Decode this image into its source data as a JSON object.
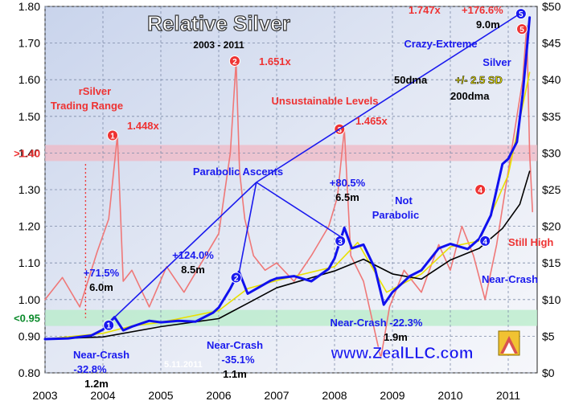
{
  "chart_data": {
    "type": "line",
    "title": "Relative Silver",
    "subtitle": "2003 - 2011",
    "x_ticks": [
      "2003",
      "2004",
      "2005",
      "2006",
      "2007",
      "2008",
      "2009",
      "2010",
      "2011"
    ],
    "y_left": {
      "ticks": [
        "0.80",
        "0.90",
        "1.00",
        "1.10",
        "1.20",
        "1.30",
        "1.40",
        "1.50",
        "1.60",
        "1.70",
        "1.80"
      ],
      "ylim": [
        0.8,
        1.8
      ]
    },
    "y_right": {
      "ticks": [
        "$0",
        "$5",
        "$10",
        "$15",
        "$20",
        "$25",
        "$30",
        "$35",
        "$40",
        "$45",
        "$50"
      ],
      "ylim": [
        0,
        50
      ]
    },
    "bands": [
      {
        "label": ">1.40",
        "y": 1.4,
        "color": "#f0b8c4"
      },
      {
        "label": "<0.95",
        "y": 0.95,
        "color": "#b7ecc8"
      }
    ],
    "series": [
      {
        "name": "Silver",
        "axis": "right",
        "color": "#1010ee",
        "x": [
          2003.0,
          2003.4,
          2003.8,
          2004.0,
          2004.2,
          2004.35,
          2004.5,
          2004.8,
          2005.0,
          2005.3,
          2005.6,
          2005.9,
          2006.0,
          2006.2,
          2006.35,
          2006.5,
          2006.7,
          2006.9,
          2007.0,
          2007.3,
          2007.6,
          2007.9,
          2008.0,
          2008.17,
          2008.3,
          2008.5,
          2008.7,
          2008.85,
          2009.0,
          2009.3,
          2009.5,
          2009.8,
          2010.0,
          2010.3,
          2010.5,
          2010.7,
          2010.9,
          2011.0,
          2011.15,
          2011.25,
          2011.32,
          2011.37
        ],
        "values": [
          4.6,
          4.7,
          5.1,
          5.9,
          7.6,
          5.8,
          6.3,
          7.1,
          6.9,
          7.1,
          7.0,
          8.2,
          8.9,
          11.5,
          13.8,
          10.8,
          11.7,
          12.6,
          12.9,
          13.2,
          12.5,
          14.2,
          15.6,
          19.8,
          17.0,
          17.5,
          14.2,
          9.3,
          11.0,
          13.2,
          14.0,
          17.0,
          17.6,
          16.9,
          18.3,
          21.5,
          28.5,
          29.2,
          31.5,
          38.0,
          44.0,
          48.5
        ]
      },
      {
        "name": "50dma",
        "axis": "right",
        "color": "#e8e000",
        "x": [
          2003.0,
          2004.0,
          2004.5,
          2005.0,
          2006.0,
          2006.5,
          2007.0,
          2008.0,
          2008.4,
          2008.9,
          2009.5,
          2010.0,
          2010.5,
          2011.0,
          2011.37
        ],
        "values": [
          4.6,
          5.4,
          6.4,
          6.9,
          8.5,
          11.5,
          12.6,
          14.5,
          17.8,
          11.0,
          13.5,
          17.2,
          18.0,
          27.0,
          41.0
        ]
      },
      {
        "name": "200dma",
        "axis": "right",
        "color": "#000000",
        "x": [
          2003.0,
          2004.0,
          2005.0,
          2006.0,
          2006.5,
          2007.0,
          2008.0,
          2008.5,
          2009.0,
          2009.5,
          2010.0,
          2010.5,
          2010.9,
          2011.2,
          2011.37
        ],
        "values": [
          4.6,
          4.9,
          6.3,
          7.4,
          9.5,
          11.6,
          13.9,
          15.5,
          13.5,
          12.8,
          15.4,
          17.0,
          19.7,
          23.0,
          27.5
        ]
      },
      {
        "name": "rSilver",
        "axis": "left",
        "color": "#ef7878",
        "x": [
          2003.0,
          2003.3,
          2003.6,
          2003.9,
          2004.1,
          2004.25,
          2004.35,
          2004.5,
          2004.8,
          2005.1,
          2005.4,
          2005.7,
          2006.0,
          2006.2,
          2006.3,
          2006.36,
          2006.45,
          2006.6,
          2006.8,
          2007.0,
          2007.3,
          2007.6,
          2007.9,
          2008.05,
          2008.17,
          2008.28,
          2008.5,
          2008.8,
          2008.95,
          2009.2,
          2009.5,
          2009.8,
          2010.0,
          2010.2,
          2010.4,
          2010.6,
          2010.8,
          2010.95,
          2011.1,
          2011.25,
          2011.32,
          2011.37,
          2011.42
        ],
        "values": [
          1.0,
          1.06,
          0.98,
          1.13,
          1.22,
          1.448,
          1.05,
          1.08,
          0.98,
          1.09,
          1.02,
          1.1,
          1.18,
          1.4,
          1.651,
          1.35,
          1.22,
          1.12,
          1.08,
          1.1,
          1.05,
          1.12,
          1.2,
          1.28,
          1.465,
          1.12,
          1.05,
          0.84,
          0.98,
          1.08,
          1.02,
          1.15,
          1.08,
          1.2,
          1.12,
          1.0,
          1.15,
          1.3,
          1.45,
          1.6,
          1.747,
          1.4,
          1.24
        ]
      }
    ],
    "annotations": [
      {
        "text": "rSilver",
        "color": "#ee3333"
      },
      {
        "text": "Trading Range",
        "color": "#ee3333"
      },
      {
        "text": "Unsustainable Levels",
        "color": "#ee3333"
      },
      {
        "text": "1.448x",
        "color": "#ee3333"
      },
      {
        "text": "1.651x",
        "color": "#ee3333"
      },
      {
        "text": "1.465x",
        "color": "#ee3333"
      },
      {
        "text": "1.747x",
        "color": "#ee3333"
      },
      {
        "text": "+176.6%",
        "color": "#ee3333"
      },
      {
        "text": "9.0m",
        "color": "#000000"
      },
      {
        "text": "Crazy-Extreme",
        "color": "#1a1aee"
      },
      {
        "text": "Silver",
        "color": "#1a1aee"
      },
      {
        "text": "50dma",
        "color": "#000000"
      },
      {
        "text": "+/- 2.5 SD",
        "color": "#e8e000"
      },
      {
        "text": "200dma",
        "color": "#000000"
      },
      {
        "text": "Parabolic Ascents",
        "color": "#1a1aee"
      },
      {
        "text": "+71.5%",
        "color": "#1a1aee"
      },
      {
        "text": "6.0m",
        "color": "#000000"
      },
      {
        "text": "+124.0%",
        "color": "#1a1aee"
      },
      {
        "text": "8.5m",
        "color": "#000000"
      },
      {
        "text": "+80.5%",
        "color": "#1a1aee"
      },
      {
        "text": "6.5m",
        "color": "#000000"
      },
      {
        "text": "Not",
        "color": "#1a1aee"
      },
      {
        "text": "Parabolic",
        "color": "#1a1aee"
      },
      {
        "text": "Still High",
        "color": "#ee3333"
      },
      {
        "text": "Near-Crash",
        "color": "#1a1aee"
      },
      {
        "text": "-32.8%",
        "color": "#1a1aee"
      },
      {
        "text": "1.2m",
        "color": "#000000"
      },
      {
        "text": "Near-Crash",
        "color": "#1a1aee"
      },
      {
        "text": "-35.1%",
        "color": "#1a1aee"
      },
      {
        "text": "1.1m",
        "color": "#000000"
      },
      {
        "text": "Near-Crash  -22.3%",
        "color": "#1a1aee"
      },
      {
        "text": "1.9m",
        "color": "#000000"
      },
      {
        "text": "Near-Crash",
        "color": "#1a1aee"
      },
      {
        "text": "5.11.2011",
        "color": "#ffffff"
      },
      {
        "text": "www.ZealLLC.com",
        "color": "#1a1aee"
      }
    ],
    "markers": [
      "1",
      "2",
      "3",
      "4",
      "5"
    ]
  }
}
